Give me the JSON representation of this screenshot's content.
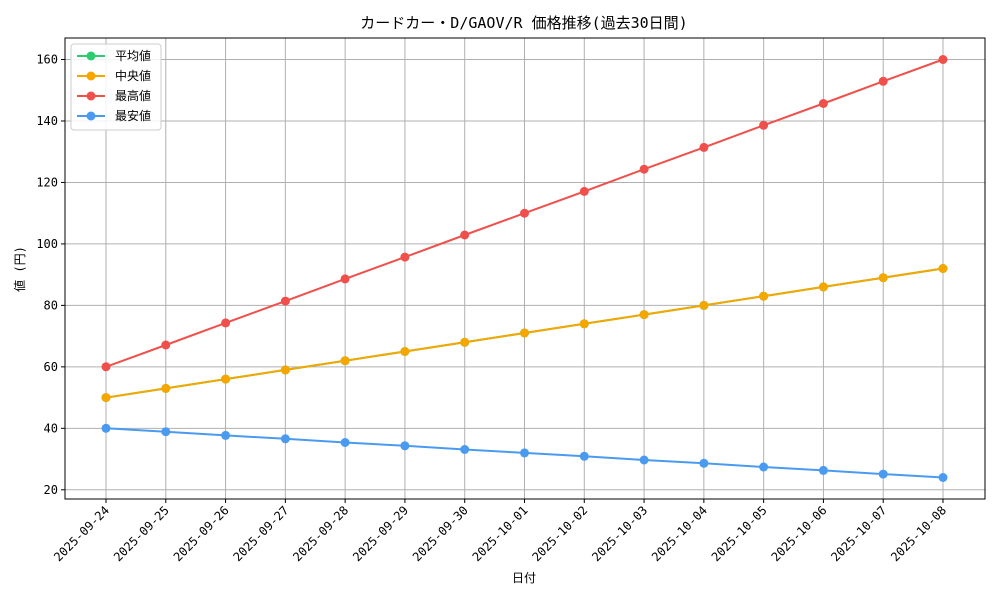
{
  "chart_data": {
    "type": "line",
    "title": "カードカー・D/GAOV/R 価格推移(過去30日間)",
    "xlabel": "日付",
    "ylabel": "値 (円)",
    "categories": [
      "2025-09-24",
      "2025-09-25",
      "2025-09-26",
      "2025-09-27",
      "2025-09-28",
      "2025-09-29",
      "2025-09-30",
      "2025-10-01",
      "2025-10-02",
      "2025-10-03",
      "2025-10-04",
      "2025-10-05",
      "2025-10-06",
      "2025-10-07",
      "2025-10-08"
    ],
    "ylim": [
      17,
      167
    ],
    "yticks": [
      20,
      40,
      60,
      80,
      100,
      120,
      140,
      160
    ],
    "grid": true,
    "legend_position": "top-left",
    "series": [
      {
        "name": "平均値",
        "color": "#2ecc71",
        "values": [
          50,
          53,
          56,
          59,
          62,
          65,
          68,
          71,
          74,
          77,
          80,
          83,
          86,
          89,
          92
        ]
      },
      {
        "name": "中央値",
        "color": "#f5a700",
        "values": [
          50,
          53,
          56,
          59,
          62,
          65,
          68,
          71,
          74,
          77,
          80,
          83,
          86,
          89,
          92
        ]
      },
      {
        "name": "最高値",
        "color": "#f0504b",
        "values": [
          60,
          67.1,
          74.3,
          81.4,
          88.6,
          95.7,
          102.9,
          110,
          117.1,
          124.3,
          131.4,
          138.6,
          145.7,
          152.9,
          160
        ]
      },
      {
        "name": "最安値",
        "color": "#4a9bf0",
        "values": [
          40,
          38.9,
          37.7,
          36.6,
          35.4,
          34.3,
          33.1,
          32,
          30.9,
          29.7,
          28.6,
          27.4,
          26.3,
          25.1,
          24
        ]
      }
    ]
  }
}
